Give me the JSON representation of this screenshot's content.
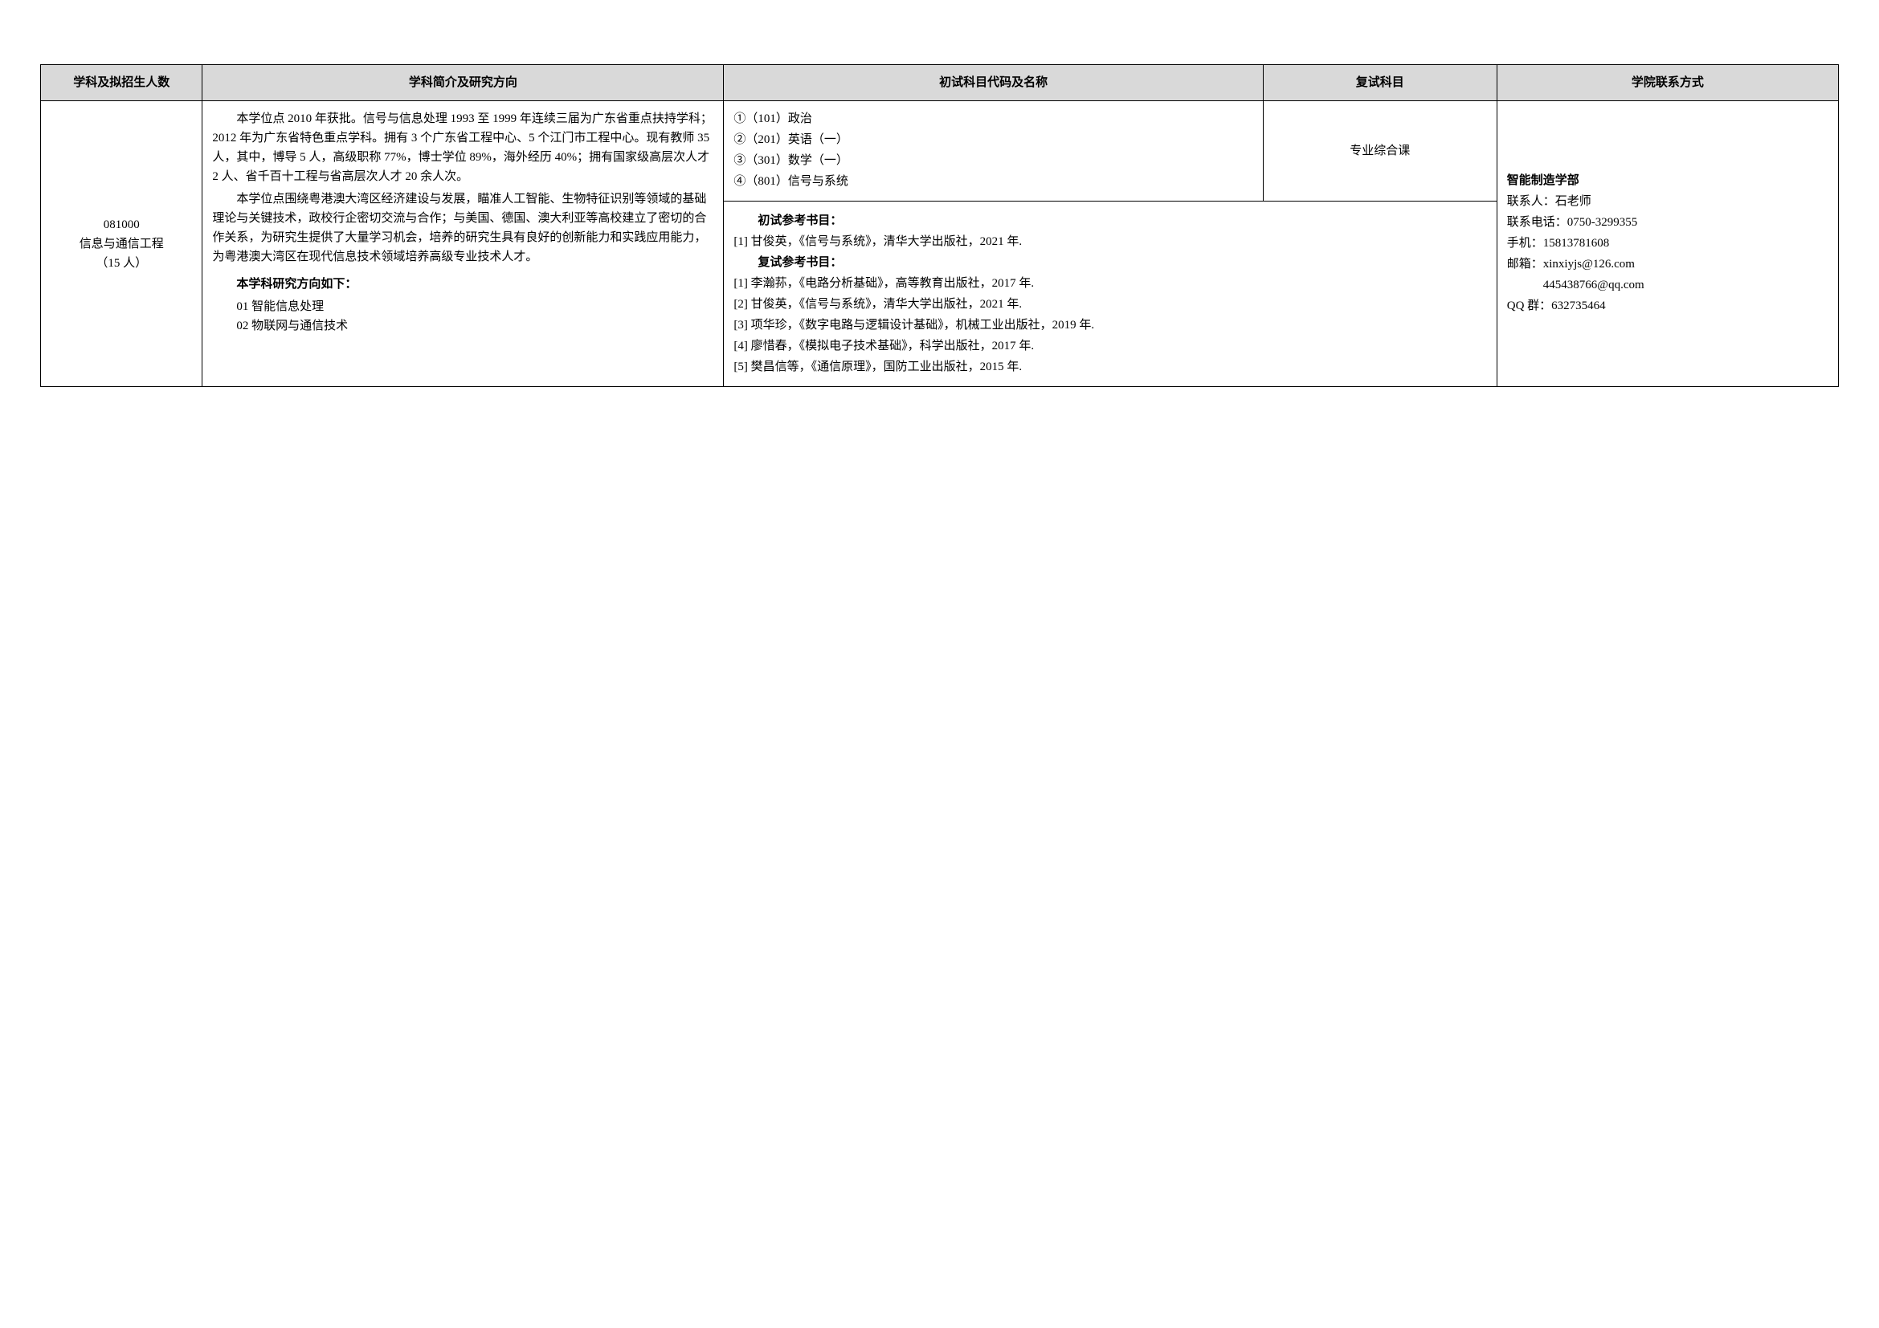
{
  "headers": {
    "subject": "学科及拟招生人数",
    "intro": "学科简介及研究方向",
    "prelim": "初试科目代码及名称",
    "retest": "复试科目",
    "contact": "学院联系方式"
  },
  "row": {
    "subject": {
      "code": "081000",
      "name": "信息与通信工程",
      "quota": "（15 人）"
    },
    "intro": {
      "p1": "本学位点 2010 年获批。信号与信息处理 1993 至 1999 年连续三届为广东省重点扶持学科；2012 年为广东省特色重点学科。拥有 3 个广东省工程中心、5 个江门市工程中心。现有教师 35 人，其中，博导 5 人，高级职称 77%，博士学位 89%，海外经历 40%；拥有国家级高层次人才 2 人、省千百十工程与省高层次人才 20 余人次。",
      "p2": "本学位点围绕粤港澳大湾区经济建设与发展，瞄准人工智能、生物特征识别等领域的基础理论与关键技术，政校行企密切交流与合作；与美国、德国、澳大利亚等高校建立了密切的合作关系，为研究生提供了大量学习机会，培养的研究生具有良好的创新能力和实践应用能力，为粤港澳大湾区在现代信息技术领域培养高级专业技术人才。",
      "direction_title": "本学科研究方向如下：",
      "direction1": "01 智能信息处理",
      "direction2": "02 物联网与通信技术"
    },
    "prelim_top": {
      "s1": "①（101）政治",
      "s2": "②（201）英语（一）",
      "s3": "③（301）数学（一）",
      "s4": "④（801）信号与系统"
    },
    "prelim_bottom": {
      "title1": "初试参考书目：",
      "r1": "[1] 甘俊英，《信号与系统》，清华大学出版社，2021 年.",
      "title2": "复试参考书目：",
      "r2": "[1] 李瀚荪，《电路分析基础》，高等教育出版社，2017 年.",
      "r3": "[2] 甘俊英，《信号与系统》，清华大学出版社，2021 年.",
      "r4": "[3] 项华珍，《数字电路与逻辑设计基础》，机械工业出版社，2019 年.",
      "r5": "[4] 廖惜春，《模拟电子技术基础》，科学出版社，2017 年.",
      "r6": "[5] 樊昌信等，《通信原理》，国防工业出版社，2015 年."
    },
    "retest": "专业综合课",
    "contact": {
      "dept": "智能制造学部",
      "person": "联系人：石老师",
      "phone": "联系电话：0750-3299355",
      "mobile": "手机：15813781608",
      "email1": "邮箱：xinxiyjs@126.com",
      "email2": "445438766@qq.com",
      "qq": "QQ 群：632735464"
    }
  }
}
